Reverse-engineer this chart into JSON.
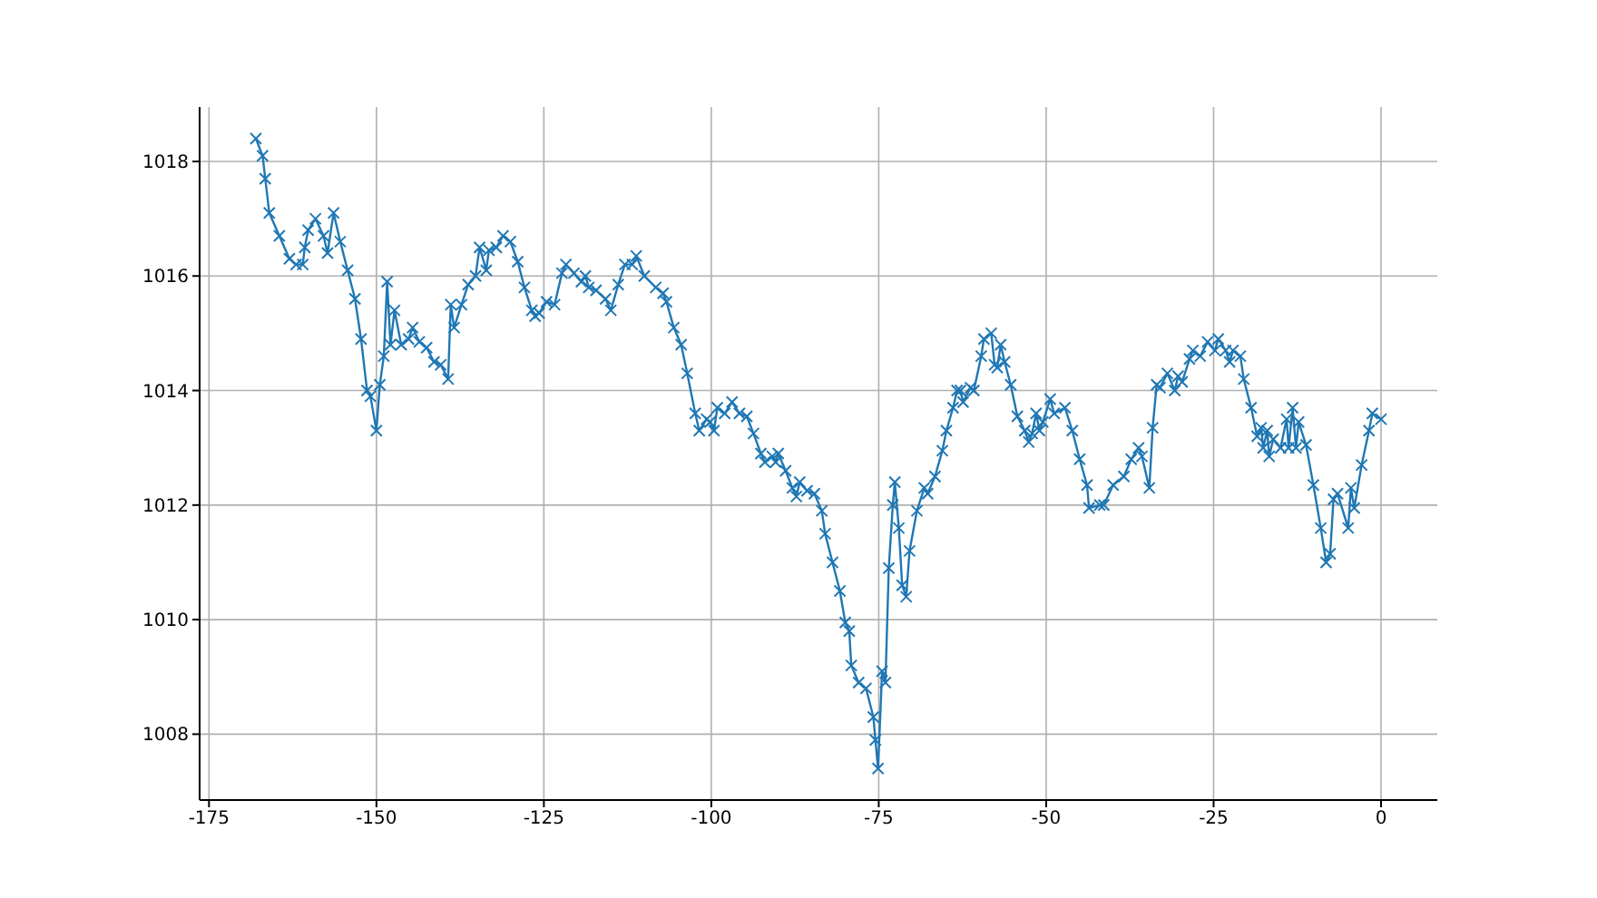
{
  "chart_data": {
    "type": "line",
    "color": "#1f77b4",
    "marker": "cross",
    "grid": true,
    "xlim": [
      -176.4,
      8.4
    ],
    "xticks": [
      -175,
      -150,
      -125,
      -100,
      -75,
      -50,
      -25,
      0
    ],
    "ylim": [
      1006.85,
      1018.95
    ],
    "yticks": [
      1008,
      1010,
      1012,
      1014,
      1016,
      1018
    ],
    "x": [
      -168,
      -167,
      -166.6,
      -166,
      -164.5,
      -163,
      -162,
      -161,
      -160.7,
      -160.2,
      -159.1,
      -157.9,
      -157.3,
      -156.4,
      -155.4,
      -154.3,
      -153.2,
      -152.3,
      -151.4,
      -150.9,
      -150,
      -149.5,
      -148.9,
      -148.4,
      -147.9,
      -147.3,
      -146.3,
      -145.2,
      -144.6,
      -143.6,
      -142.5,
      -141.4,
      -140.4,
      -139.3,
      -138.9,
      -138.4,
      -137.3,
      -136.3,
      -135.2,
      -134.6,
      -133.6,
      -133.2,
      -132.1,
      -131.1,
      -130,
      -128.9,
      -127.9,
      -126.8,
      -126.3,
      -125.7,
      -124.6,
      -123.4,
      -122.3,
      -121.7,
      -120.5,
      -119.4,
      -118.8,
      -118.3,
      -117.2,
      -115.8,
      -115,
      -113.9,
      -112.9,
      -111.8,
      -111.2,
      -110,
      -108.3,
      -107.2,
      -106.7,
      -105.6,
      -104.5,
      -103.6,
      -102.4,
      -101.8,
      -100.7,
      -100.2,
      -99.6,
      -99.1,
      -98,
      -96.9,
      -95.8,
      -94.7,
      -93.7,
      -92.6,
      -92,
      -90.9,
      -90.4,
      -90,
      -88.9,
      -87.9,
      -87.3,
      -86.8,
      -85.7,
      -84.6,
      -83.5,
      -83,
      -81.9,
      -80.8,
      -80,
      -79.4,
      -79.1,
      -78,
      -76.9,
      -75.8,
      -75.5,
      -75.1,
      -74.5,
      -74,
      -73.5,
      -72.9,
      -72.6,
      -72,
      -71.5,
      -70.9,
      -70.4,
      -69.3,
      -68.2,
      -67.7,
      -66.6,
      -65.5,
      -64.9,
      -63.9,
      -63.3,
      -62.8,
      -62.4,
      -61.3,
      -60.8,
      -59.7,
      -59.3,
      -58.2,
      -57.7,
      -57.3,
      -56.8,
      -56.2,
      -55.3,
      -54.3,
      -53.2,
      -52.6,
      -52.1,
      -51.5,
      -51,
      -50.5,
      -49.4,
      -48.8,
      -47.2,
      -46.1,
      -45,
      -43.9,
      -43.6,
      -42,
      -41.4,
      -40,
      -38.4,
      -37.3,
      -36.2,
      -35.7,
      -34.6,
      -34.1,
      -33.5,
      -33,
      -31.9,
      -30.8,
      -30.3,
      -29.7,
      -28.6,
      -28.1,
      -27,
      -25.9,
      -24.8,
      -24.3,
      -23.2,
      -22.6,
      -22.1,
      -21,
      -20.5,
      -19.4,
      -18.5,
      -17.9,
      -17.6,
      -17,
      -16.7,
      -16.1,
      -15,
      -14.1,
      -13.8,
      -13.2,
      -12.7,
      -12.3,
      -11.2,
      -10.1,
      -9,
      -8.2,
      -7.6,
      -7.1,
      -6.5,
      -4.9,
      -4.5,
      -4,
      -2.9,
      -1.8,
      -1.3,
      0
    ],
    "values": [
      1018.4,
      1018.1,
      1017.7,
      1017.1,
      1016.7,
      1016.3,
      1016.2,
      1016.2,
      1016.5,
      1016.8,
      1017.0,
      1016.7,
      1016.4,
      1017.1,
      1016.6,
      1016.1,
      1015.6,
      1014.9,
      1014.0,
      1013.9,
      1013.3,
      1014.1,
      1014.6,
      1015.9,
      1014.8,
      1015.4,
      1014.8,
      1014.9,
      1015.1,
      1014.85,
      1014.75,
      1014.5,
      1014.45,
      1014.2,
      1015.5,
      1015.1,
      1015.5,
      1015.85,
      1016.0,
      1016.5,
      1016.1,
      1016.45,
      1016.5,
      1016.7,
      1016.6,
      1016.25,
      1015.8,
      1015.4,
      1015.3,
      1015.35,
      1015.55,
      1015.5,
      1016.05,
      1016.2,
      1016.05,
      1015.9,
      1016.0,
      1015.8,
      1015.75,
      1015.6,
      1015.4,
      1015.85,
      1016.2,
      1016.2,
      1016.35,
      1016.0,
      1015.8,
      1015.7,
      1015.55,
      1015.1,
      1014.8,
      1014.3,
      1013.6,
      1013.3,
      1013.5,
      1013.45,
      1013.3,
      1013.7,
      1013.6,
      1013.8,
      1013.6,
      1013.55,
      1013.25,
      1012.9,
      1012.75,
      1012.85,
      1012.75,
      1012.9,
      1012.6,
      1012.3,
      1012.15,
      1012.4,
      1012.25,
      1012.2,
      1011.9,
      1011.5,
      1011.0,
      1010.5,
      1009.95,
      1009.8,
      1009.2,
      1008.9,
      1008.8,
      1008.3,
      1007.9,
      1007.4,
      1009.1,
      1008.9,
      1010.9,
      1012.0,
      1012.4,
      1011.6,
      1010.6,
      1010.4,
      1011.2,
      1011.9,
      1012.3,
      1012.2,
      1012.5,
      1012.95,
      1013.3,
      1013.7,
      1014.0,
      1014.0,
      1013.8,
      1014.05,
      1014.0,
      1014.6,
      1014.9,
      1015.0,
      1014.45,
      1014.4,
      1014.8,
      1014.5,
      1014.1,
      1013.55,
      1013.3,
      1013.1,
      1013.25,
      1013.6,
      1013.3,
      1013.45,
      1013.85,
      1013.6,
      1013.7,
      1013.3,
      1012.8,
      1012.35,
      1011.95,
      1012.0,
      1012.0,
      1012.35,
      1012.5,
      1012.8,
      1013.0,
      1012.85,
      1012.3,
      1013.35,
      1014.1,
      1014.05,
      1014.3,
      1014.0,
      1014.25,
      1014.15,
      1014.55,
      1014.7,
      1014.6,
      1014.85,
      1014.7,
      1014.9,
      1014.7,
      1014.5,
      1014.7,
      1014.6,
      1014.2,
      1013.7,
      1013.2,
      1013.35,
      1013.0,
      1013.3,
      1012.85,
      1013.15,
      1013.0,
      1013.5,
      1013.0,
      1013.7,
      1013.0,
      1013.45,
      1013.05,
      1012.35,
      1011.6,
      1011.0,
      1011.15,
      1012.1,
      1012.2,
      1011.6,
      1012.3,
      1011.95,
      1012.7,
      1013.3,
      1013.6,
      1013.5
    ]
  }
}
